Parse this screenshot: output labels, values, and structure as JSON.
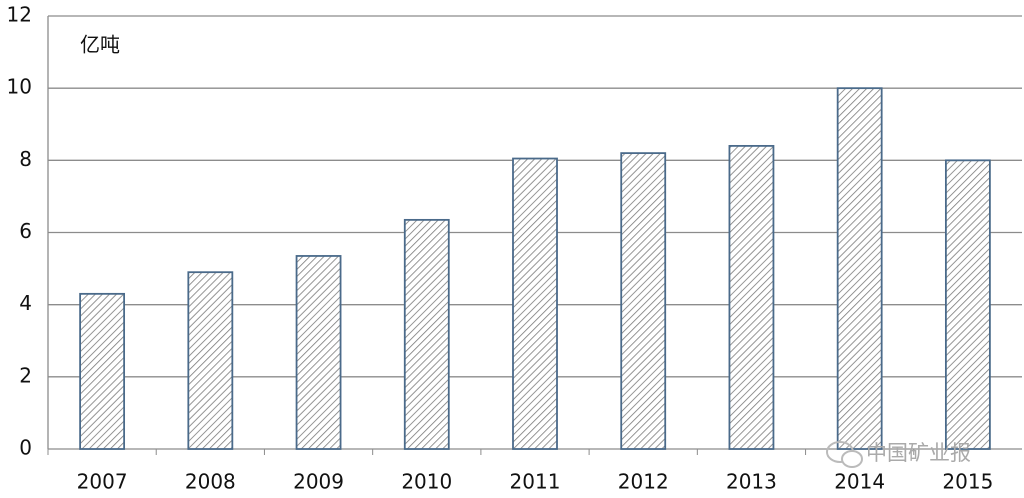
{
  "chart_data": {
    "type": "bar",
    "unit_label": "亿吨",
    "watermark": "中国矿业报",
    "categories": [
      "2007",
      "2008",
      "2009",
      "2010",
      "2011",
      "2012",
      "2013",
      "2014",
      "2015"
    ],
    "values": [
      4.3,
      4.9,
      5.35,
      6.35,
      8.05,
      8.2,
      8.4,
      10.0,
      8.0
    ],
    "color": "#4a6a8a",
    "ylim": [
      0,
      12
    ],
    "yticks": [
      0,
      2,
      4,
      6,
      8,
      10,
      12
    ],
    "grid": true
  }
}
